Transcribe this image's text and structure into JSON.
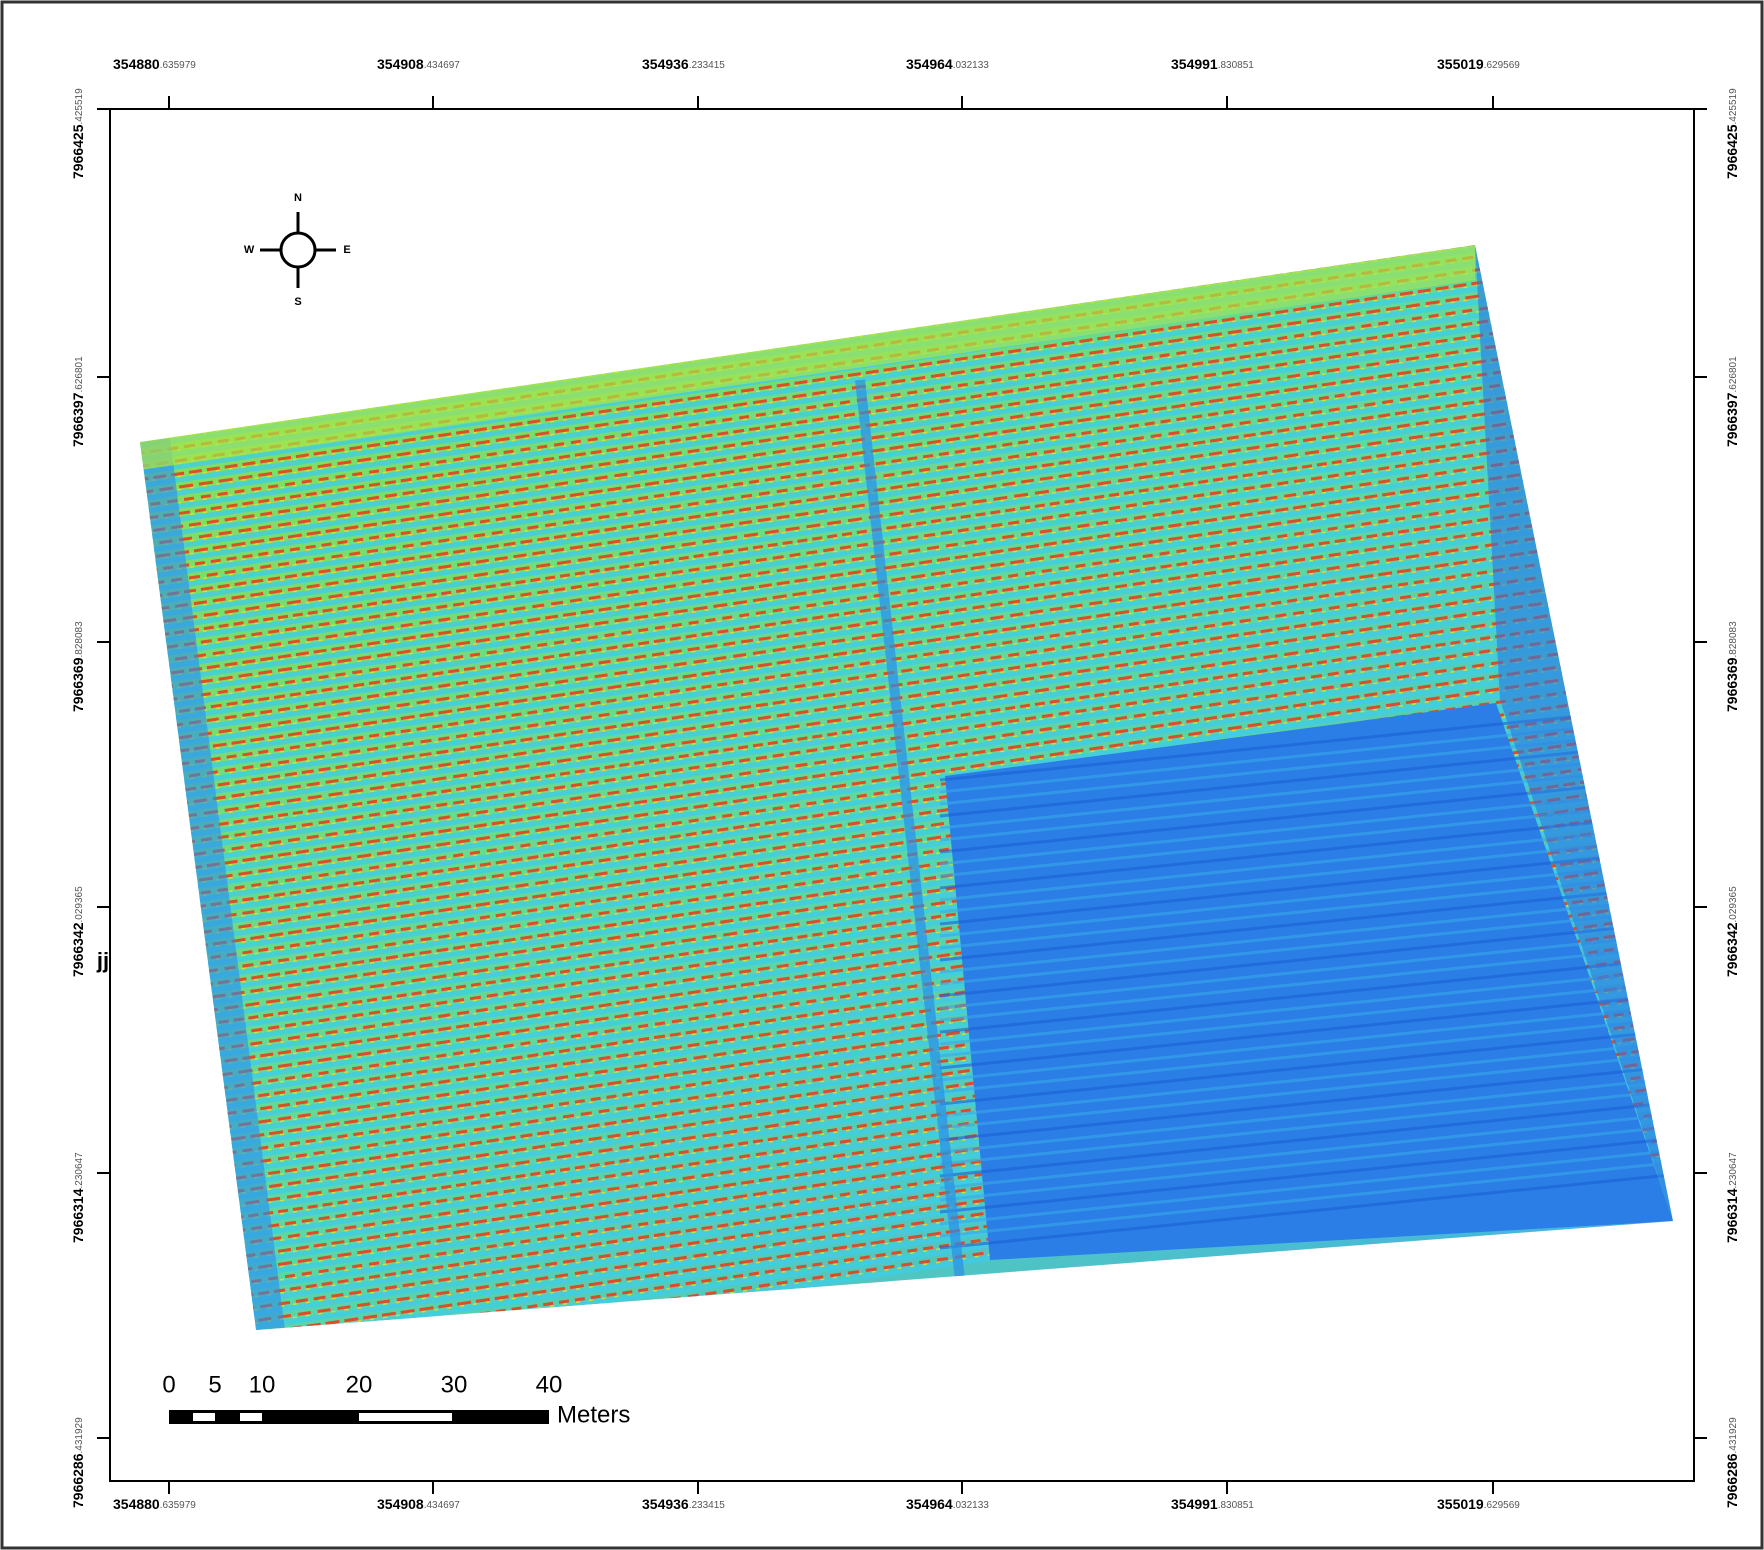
{
  "x_labels": [
    {
      "main": "354880",
      "decimal": ".635979"
    },
    {
      "main": "354908",
      "decimal": ".434697"
    },
    {
      "main": "354936",
      "decimal": ".233415"
    },
    {
      "main": "354964",
      "decimal": ".032133"
    },
    {
      "main": "354991",
      "decimal": ".830851"
    },
    {
      "main": "355019",
      "decimal": ".629569"
    }
  ],
  "y_labels": [
    {
      "main": "7966425",
      "decimal": ".425519"
    },
    {
      "main": "7966397",
      "decimal": ".626801"
    },
    {
      "main": "7966369",
      "decimal": ".828083"
    },
    {
      "main": "7966342",
      "decimal": ".029365"
    },
    {
      "main": "7966314",
      "decimal": ".230647"
    },
    {
      "main": "7966286",
      "decimal": ".431929"
    }
  ],
  "compass": {
    "north": "N",
    "east": "E",
    "south": "S",
    "west": "W"
  },
  "scale_bar": {
    "labels": [
      "0",
      "5",
      "10",
      "20",
      "30",
      "40"
    ],
    "unit": "Meters"
  },
  "side_note": "jj"
}
